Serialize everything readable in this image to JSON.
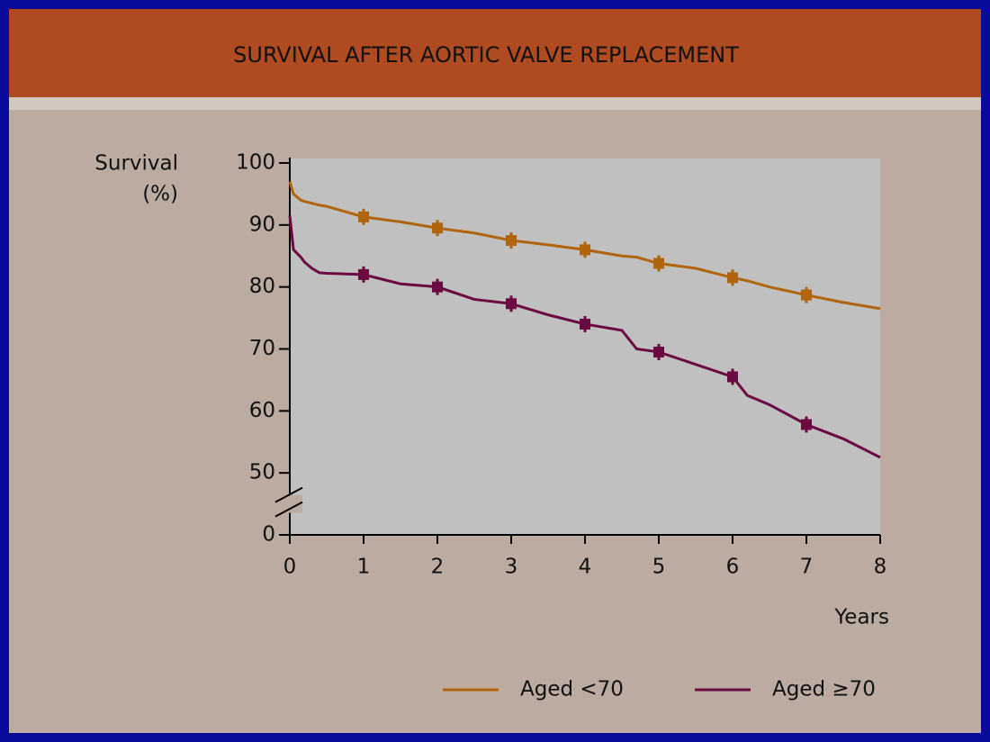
{
  "chart_data": {
    "type": "line",
    "title": "SURVIVAL AFTER AORTIC VALVE REPLACEMENT",
    "y_label": [
      "Survival",
      "(%)"
    ],
    "x_label": "Years",
    "x": [
      0,
      0.05,
      0.15,
      0.2,
      0.3,
      0.4,
      0.5,
      1,
      1.5,
      2,
      2.5,
      3,
      3.5,
      4,
      4.5,
      4.7,
      5,
      5.5,
      6,
      6.2,
      6.5,
      7,
      7.5,
      8
    ],
    "series": [
      {
        "name": "Aged <70",
        "color": "#b0640c",
        "values": [
          97,
          95,
          94,
          93.8,
          93.5,
          93.2,
          93,
          91.3,
          90.5,
          89.5,
          88.7,
          87.5,
          86.8,
          86,
          85,
          84.8,
          83.8,
          83,
          81.5,
          81,
          80,
          78.7,
          77.5,
          76.5
        ]
      },
      {
        "name": "Aged ≥70",
        "color": "#6a0a40",
        "values": [
          91.5,
          86,
          84.8,
          84,
          83,
          82.3,
          82.2,
          82,
          80.5,
          80,
          78,
          77.3,
          75.5,
          74,
          73,
          70,
          69.5,
          67.5,
          65.5,
          62.5,
          61,
          57.8,
          55.5,
          52.5
        ]
      }
    ],
    "xlim": [
      0,
      8
    ],
    "xticks": [
      0,
      1,
      2,
      3,
      4,
      5,
      6,
      7,
      8
    ],
    "ylim": [
      0,
      100
    ],
    "yticks": [
      0,
      50,
      60,
      70,
      80,
      90,
      100
    ],
    "axis_break": true
  }
}
